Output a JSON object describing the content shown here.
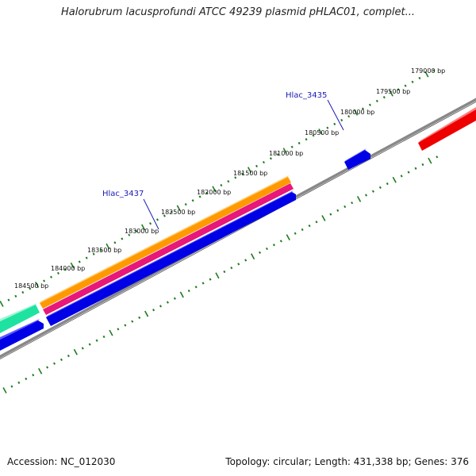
{
  "title": "Halorubrum lacusprofundi ATCC 49239 plasmid pHLAC01, complet...",
  "footer": {
    "accession": "Accession: NC_012030",
    "summary": "Topology: circular; Length: 431,338 bp; Genes: 376"
  },
  "scale": {
    "tick_labels": [
      "179000 bp",
      "179500 bp",
      "180000 bp",
      "180500 bp",
      "181000 bp",
      "181500 bp",
      "182000 bp",
      "182500 bp",
      "183000 bp",
      "183500 bp",
      "184000 bp",
      "184500 bp"
    ]
  },
  "gene_labels": [
    "Hlac_3435",
    "Hlac_3437"
  ],
  "colors": {
    "backbone": "#808080",
    "ticks": "#1e7b1e",
    "orange_track": "#ff9900",
    "magenta_track": "#e8177a",
    "blue_gene": "#0000e6",
    "teal_gene": "#1ee3a0",
    "red_gene": "#ee0000",
    "gene_label": "#1a1ab8"
  }
}
